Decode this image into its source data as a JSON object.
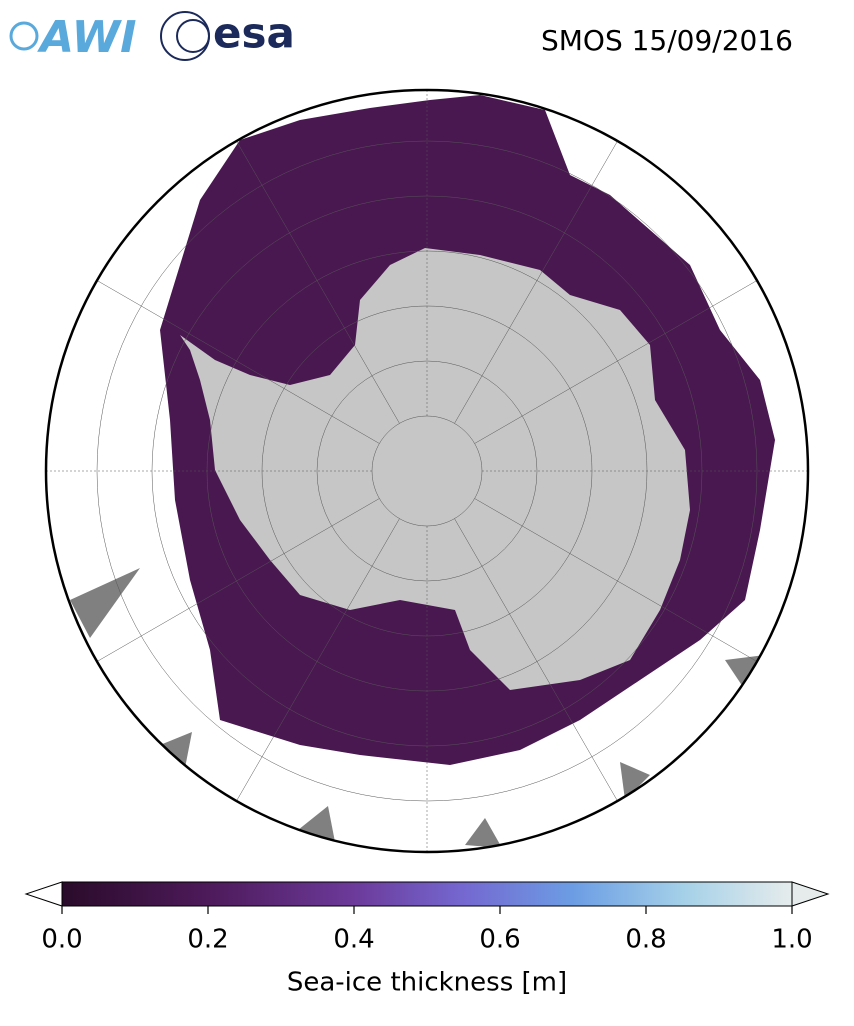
{
  "logos": [
    "AWI",
    "esa"
  ],
  "title": "SMOS 15/09/2016",
  "colorbar": {
    "label": "Sea-ice thickness [m]",
    "lim": [
      0,
      1
    ],
    "ticks": [
      {
        "value": 0,
        "label": "0.0"
      },
      0.2,
      0.4,
      0.6,
      0.8,
      {
        "value": 1,
        "label": "1.0"
      }
    ]
  }
}
